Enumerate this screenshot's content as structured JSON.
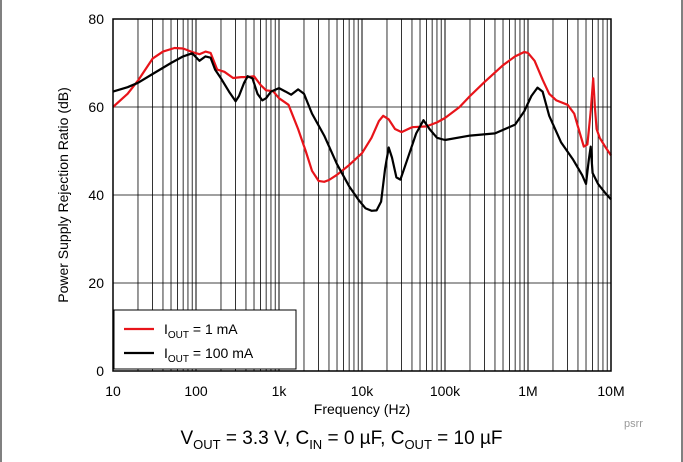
{
  "chart_data": {
    "type": "line",
    "title": "",
    "xlabel": "Frequency (Hz)",
    "ylabel": "Power Supply Rejection Ratio (dB)",
    "xscale": "log",
    "xlim": [
      10,
      10000000
    ],
    "ylim": [
      0,
      80
    ],
    "x_ticks": [
      10,
      100,
      1000,
      10000,
      100000,
      1000000,
      10000000
    ],
    "x_tick_labels": [
      "10",
      "100",
      "1k",
      "10k",
      "100k",
      "1M",
      "10M"
    ],
    "y_ticks": [
      0,
      20,
      40,
      60,
      80
    ],
    "y_tick_labels": [
      "0",
      "20",
      "40",
      "60",
      "80"
    ],
    "grid": true,
    "legend_position": "bottom-left",
    "series": [
      {
        "name": "I_OUT = 1 mA",
        "color": "#e8141a",
        "points": [
          [
            10,
            60
          ],
          [
            15,
            63
          ],
          [
            20,
            66
          ],
          [
            30,
            71
          ],
          [
            40,
            72.6
          ],
          [
            55,
            73.4
          ],
          [
            70,
            73.3
          ],
          [
            90,
            72.5
          ],
          [
            110,
            72
          ],
          [
            130,
            72.6
          ],
          [
            150,
            72.3
          ],
          [
            180,
            68.5
          ],
          [
            220,
            68
          ],
          [
            280,
            66.6
          ],
          [
            350,
            66.8
          ],
          [
            420,
            66.8
          ],
          [
            500,
            67
          ],
          [
            600,
            65
          ],
          [
            700,
            63.8
          ],
          [
            850,
            63.6
          ],
          [
            1000,
            62
          ],
          [
            1300,
            60.5
          ],
          [
            1700,
            55
          ],
          [
            2100,
            50
          ],
          [
            2500,
            45.5
          ],
          [
            3000,
            43.2
          ],
          [
            3500,
            43
          ],
          [
            4000,
            43.4
          ],
          [
            5000,
            44.6
          ],
          [
            7000,
            46.8
          ],
          [
            10000,
            49.5
          ],
          [
            13000,
            53
          ],
          [
            16000,
            56.8
          ],
          [
            18000,
            58
          ],
          [
            21000,
            57.2
          ],
          [
            25000,
            55
          ],
          [
            30000,
            54.3
          ],
          [
            40000,
            55.4
          ],
          [
            60000,
            55.6
          ],
          [
            80000,
            56.5
          ],
          [
            100000,
            57.5
          ],
          [
            150000,
            60
          ],
          [
            200000,
            62.5
          ],
          [
            300000,
            65.7
          ],
          [
            500000,
            69.5
          ],
          [
            700000,
            71.5
          ],
          [
            900000,
            72.5
          ],
          [
            1000000,
            72.3
          ],
          [
            1200000,
            70.5
          ],
          [
            1500000,
            66.2
          ],
          [
            1800000,
            63
          ],
          [
            2200000,
            61.5
          ],
          [
            3000000,
            60.5
          ],
          [
            3600000,
            58.5
          ],
          [
            4000000,
            55.5
          ],
          [
            4700000,
            51
          ],
          [
            5200000,
            51.5
          ],
          [
            5700000,
            59
          ],
          [
            6100000,
            66.5
          ],
          [
            6400000,
            60
          ],
          [
            6700000,
            55
          ],
          [
            7300000,
            53
          ],
          [
            8500000,
            51
          ],
          [
            10000000,
            49
          ]
        ]
      },
      {
        "name": "I_OUT = 100 mA",
        "color": "#000000",
        "points": [
          [
            10,
            63.5
          ],
          [
            15,
            64.5
          ],
          [
            20,
            65.5
          ],
          [
            30,
            67.5
          ],
          [
            50,
            70
          ],
          [
            70,
            71.5
          ],
          [
            90,
            72.2
          ],
          [
            110,
            70.5
          ],
          [
            130,
            71.5
          ],
          [
            150,
            71.2
          ],
          [
            170,
            68.5
          ],
          [
            200,
            66.5
          ],
          [
            250,
            63.5
          ],
          [
            300,
            61.3
          ],
          [
            330,
            62.5
          ],
          [
            380,
            65.5
          ],
          [
            420,
            67
          ],
          [
            480,
            66.5
          ],
          [
            550,
            63
          ],
          [
            630,
            61.5
          ],
          [
            700,
            62
          ],
          [
            800,
            63.5
          ],
          [
            1000,
            64.3
          ],
          [
            1200,
            63.5
          ],
          [
            1400,
            62.8
          ],
          [
            1700,
            64
          ],
          [
            2000,
            63
          ],
          [
            2500,
            58.5
          ],
          [
            3500,
            53.5
          ],
          [
            5000,
            47
          ],
          [
            7000,
            42
          ],
          [
            9000,
            39
          ],
          [
            11000,
            37
          ],
          [
            13000,
            36.4
          ],
          [
            15000,
            36.5
          ],
          [
            17000,
            38.5
          ],
          [
            19000,
            46
          ],
          [
            21000,
            50.8
          ],
          [
            23000,
            48.5
          ],
          [
            26000,
            44
          ],
          [
            29000,
            43.5
          ],
          [
            35000,
            48
          ],
          [
            45000,
            54
          ],
          [
            55000,
            57
          ],
          [
            65000,
            55
          ],
          [
            80000,
            53
          ],
          [
            100000,
            52.5
          ],
          [
            200000,
            53.5
          ],
          [
            400000,
            54
          ],
          [
            700000,
            56
          ],
          [
            900000,
            59
          ],
          [
            1100000,
            62.5
          ],
          [
            1300000,
            64.4
          ],
          [
            1500000,
            63.5
          ],
          [
            1800000,
            58
          ],
          [
            2500000,
            52
          ],
          [
            3500000,
            48
          ],
          [
            4500000,
            44.5
          ],
          [
            5000000,
            42.5
          ],
          [
            5400000,
            48
          ],
          [
            5700000,
            51
          ],
          [
            6000000,
            45
          ],
          [
            7000000,
            42.5
          ],
          [
            8500000,
            40.5
          ],
          [
            10000000,
            39
          ]
        ]
      }
    ],
    "legend": [
      {
        "main": "I",
        "sub": "OUT",
        "rest": " = 1 mA",
        "color": "#e8141a"
      },
      {
        "main": "I",
        "sub": "OUT",
        "rest": " = 100 mA",
        "color": "#000000"
      }
    ]
  },
  "caption": {
    "v": "V",
    "v_sub": "OUT",
    "v_rest": " = 3.3 V, ",
    "cin": "C",
    "cin_sub": "IN",
    "cin_rest": " = 0 µF, ",
    "cout": "C",
    "cout_sub": "OUT",
    "cout_rest": " = 10 µF"
  },
  "code_label": "psrr"
}
